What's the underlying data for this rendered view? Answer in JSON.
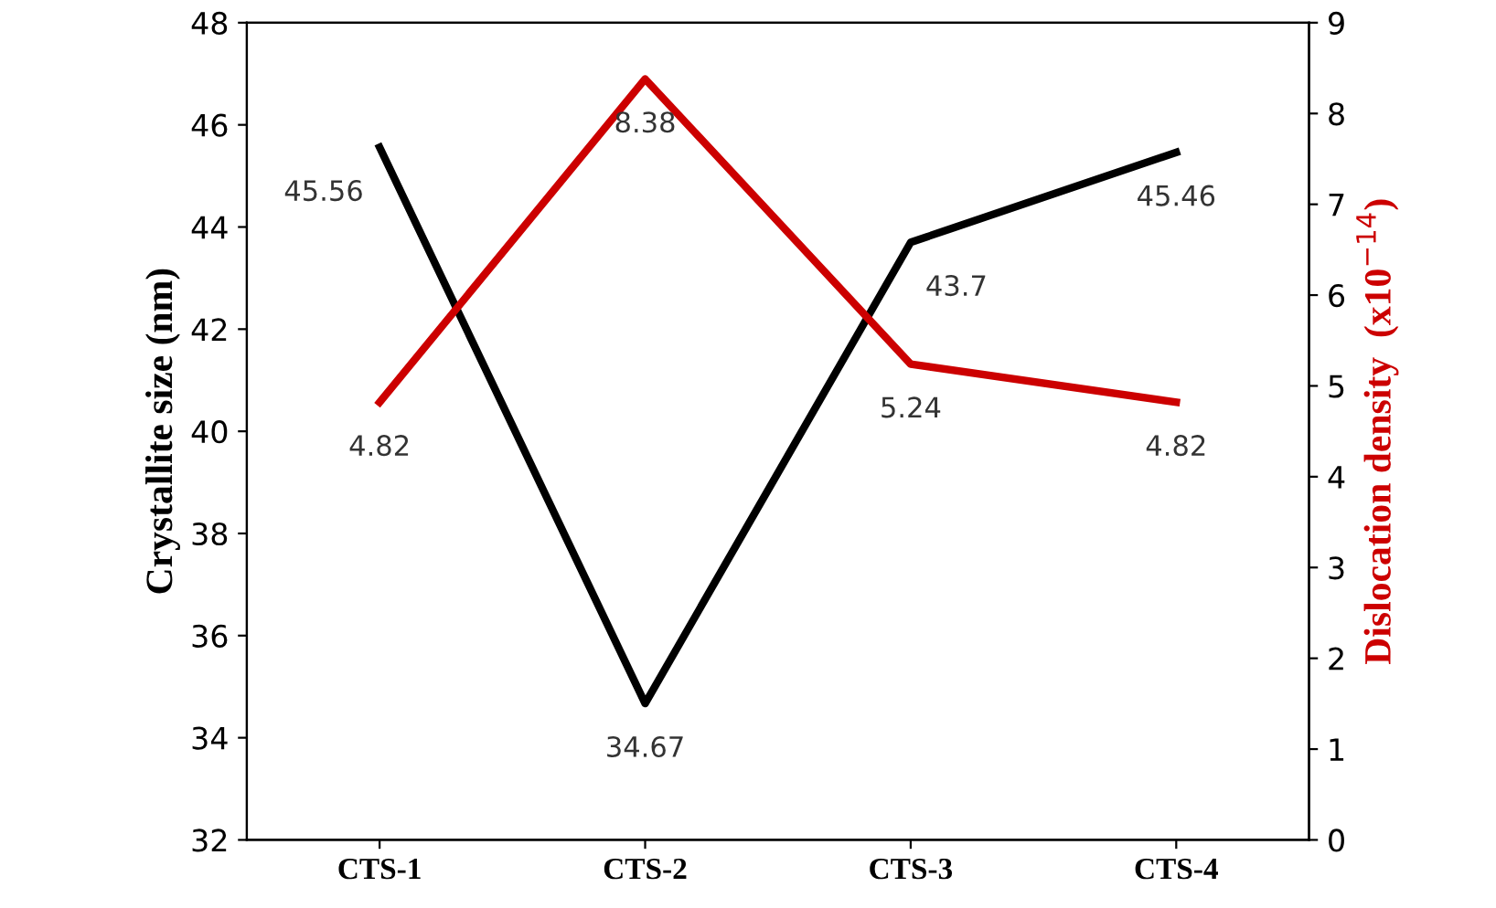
{
  "chart_data": {
    "type": "line",
    "ylabel": "Crystallite size (nm)",
    "y2label": "Dislocation density  (x10$^{−14}$)",
    "categories": [
      "CTS-1",
      "CTS-2",
      "CTS-3",
      "CTS-4"
    ],
    "series": [
      {
        "color": "#000000",
        "values": [
          45.56,
          34.67,
          43.7,
          45.46
        ]
      },
      {
        "color": "#cc0000",
        "values": [
          4.82,
          8.38,
          5.24,
          4.82
        ],
        "axis": "y2"
      }
    ],
    "ylim": [
      32,
      48
    ],
    "yticks": [
      32,
      34,
      36,
      38,
      40,
      42,
      44,
      46,
      48
    ],
    "y2lim": [
      0,
      9
    ],
    "y2ticks": [
      0,
      1,
      2,
      3,
      4,
      5,
      6,
      7,
      8,
      9
    ],
    "data_labels": true,
    "grid": false,
    "marker": "none",
    "line_style": "solid"
  }
}
